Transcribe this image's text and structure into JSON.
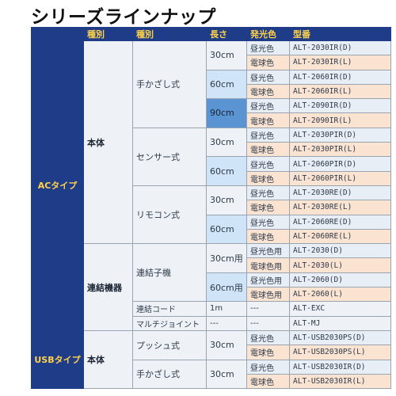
{
  "title": "シリーズラインナップ",
  "headers": [
    "種別",
    "種別",
    "長さ",
    "発光色",
    "型番"
  ],
  "type_ac": "ACタイプ",
  "type_usb": "USBタイプ",
  "kind_main": "本体",
  "kind_link": "連結機器",
  "kind_usb_main": "本体",
  "style_hand": "手かざし式",
  "style_sensor": "センサー式",
  "style_remote": "リモコン式",
  "style_connector": "連結子機",
  "style_push": "プッシュ式",
  "style_hand_usb": "手かざし式",
  "link_cord": "連結コード",
  "multi_joint": "マルチジョイント",
  "len_30": "30cm",
  "len_60": "60cm",
  "len_90": "90cm",
  "len_30_for": "30cm用",
  "len_60_for": "60cm用",
  "len_1m": "1m",
  "dash": "---",
  "rows": [
    {
      "color": "昼光色",
      "model": "ALT-2030IR(D)"
    },
    {
      "color": "電球色",
      "model": "ALT-2030IR(L)"
    },
    {
      "color": "昼光色",
      "model": "ALT-2060IR(D)"
    },
    {
      "color": "電球色",
      "model": "ALT-2060IR(L)"
    },
    {
      "color": "昼光色",
      "model": "ALT-2090IR(D)"
    },
    {
      "color": "電球色",
      "model": "ALT-2090IR(L)"
    },
    {
      "color": "昼光色",
      "model": "ALT-2030PIR(D)"
    },
    {
      "color": "電球色",
      "model": "ALT-2030PIR(L)"
    },
    {
      "color": "昼光色",
      "model": "ALT-2060PIR(D)"
    },
    {
      "color": "電球色",
      "model": "ALT-2060PIR(L)"
    },
    {
      "color": "昼光色",
      "model": "ALT-2030RE(D)"
    },
    {
      "color": "電球色",
      "model": "ALT-2030RE(L)"
    },
    {
      "color": "昼光色",
      "model": "ALT-2060RE(D)"
    },
    {
      "color": "電球色",
      "model": "ALT-2060RE(L)"
    },
    {
      "color": "昼光色用",
      "model": "ALT-2030(D)"
    },
    {
      "color": "電球色用",
      "model": "ALT-2030(L)"
    },
    {
      "color": "昼光色用",
      "model": "ALT-2060(D)"
    },
    {
      "color": "電球色用",
      "model": "ALT-2060(L)"
    },
    {
      "color": "---",
      "model": "ALT-EXC"
    },
    {
      "color": "---",
      "model": "ALT-MJ"
    },
    {
      "color": "昼光色",
      "model": "ALT-USB2030PS(D)"
    },
    {
      "color": "電球色",
      "model": "ALT-USB2030PS(L)"
    },
    {
      "color": "昼光色",
      "model": "ALT-USB2030IR(D)"
    },
    {
      "color": "電球色",
      "model": "ALT-USB2030IR(L)"
    }
  ],
  "colors": {
    "header_bg": "#1f3c88",
    "header_text": "#ffd24a",
    "bulb_bg": "#fbe3d2",
    "len_highlight": "#5a94d2",
    "len_light": "#cfe4f6"
  }
}
